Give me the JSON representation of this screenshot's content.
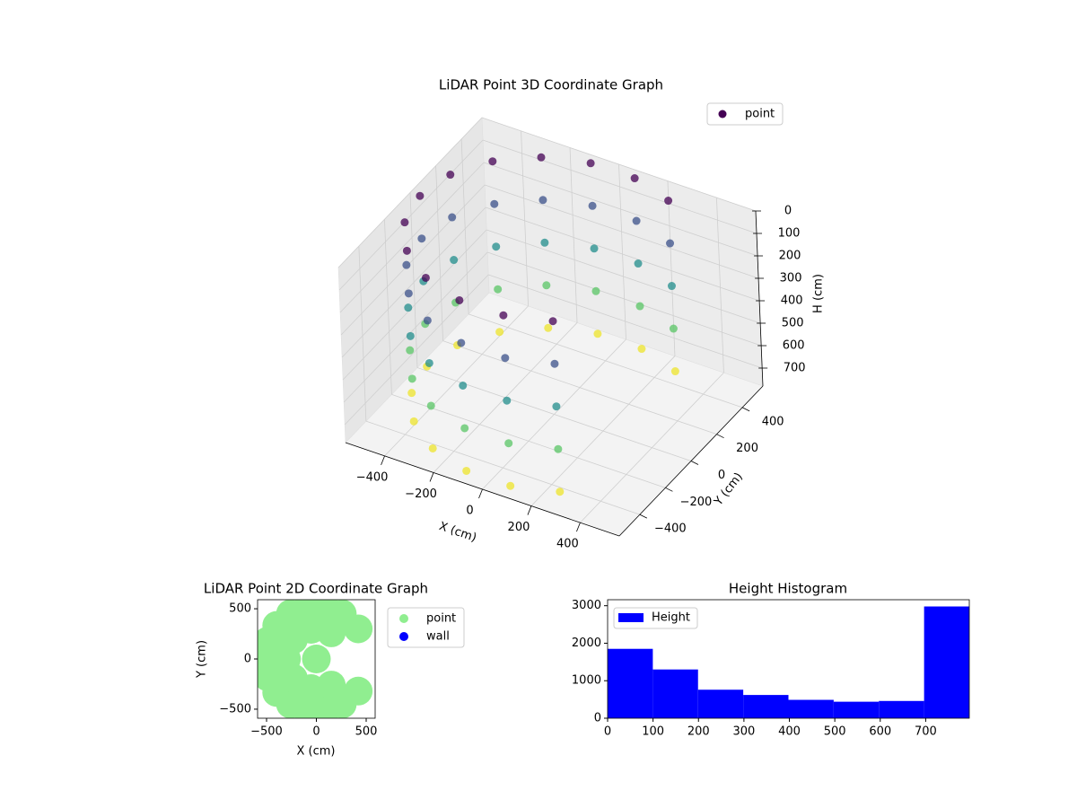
{
  "chart_data": [
    {
      "type": "scatter3d",
      "title": "LiDAR Point 3D Coordinate Graph",
      "xlabel": "X (cm)",
      "ylabel": "Y (cm)",
      "zlabel": "H (cm)",
      "xlim": [
        -560,
        560
      ],
      "ylim": [
        -560,
        560
      ],
      "zlim": [
        0,
        780
      ],
      "z_inverted": true,
      "xticks": [
        {
          "value": -400,
          "label": "−400"
        },
        {
          "value": -200,
          "label": "−200"
        },
        0,
        200,
        400
      ],
      "yticks": [
        {
          "value": -400,
          "label": "−400"
        },
        {
          "value": -200,
          "label": "−200"
        },
        0,
        200,
        400
      ],
      "zticks": [
        0,
        100,
        200,
        300,
        400,
        500,
        600,
        700
      ],
      "grid": true,
      "colormap": "viridis",
      "legend": "upper right",
      "series": [
        {
          "name": "point",
          "color": "#440154",
          "x": [
            260,
            260,
            260,
            260,
            260,
            90,
            90,
            90,
            90,
            90,
            -90,
            -90,
            -90,
            -90,
            -90,
            -260,
            -260,
            -260,
            -260,
            -260,
            -398,
            -398,
            -398,
            -398,
            -398,
            -489,
            -489,
            -489,
            -489,
            -489,
            -520,
            -520,
            -520,
            -520,
            -520,
            -489,
            -489,
            -489,
            -489,
            -489,
            -398,
            -398,
            -398,
            -398,
            -398,
            -260,
            -260,
            -260,
            -260,
            -260,
            -90,
            -90,
            -90,
            -90,
            -90,
            90,
            90,
            90,
            90,
            90,
            260,
            260,
            260,
            260,
            260
          ],
          "y": [
            450,
            450,
            450,
            450,
            450,
            512,
            512,
            512,
            512,
            512,
            512,
            512,
            512,
            512,
            512,
            450,
            450,
            450,
            450,
            450,
            334,
            334,
            334,
            334,
            334,
            178,
            178,
            178,
            178,
            178,
            0,
            0,
            0,
            0,
            0,
            -178,
            -178,
            -178,
            -178,
            -178,
            -334,
            -334,
            -334,
            -334,
            -334,
            -450,
            -450,
            -450,
            -450,
            -450,
            -512,
            -512,
            -512,
            -512,
            -512,
            -512,
            -512,
            -512,
            -512,
            -512,
            -450,
            -450,
            -450,
            -450,
            -450
          ],
          "z": [
            0,
            190,
            380,
            570,
            760,
            0,
            190,
            380,
            570,
            760,
            0,
            190,
            380,
            570,
            760,
            0,
            190,
            380,
            570,
            760,
            0,
            190,
            380,
            570,
            760,
            0,
            190,
            380,
            570,
            760,
            0,
            190,
            380,
            570,
            760,
            0,
            190,
            380,
            570,
            760,
            0,
            190,
            380,
            570,
            760,
            0,
            190,
            380,
            570,
            760,
            0,
            190,
            380,
            570,
            760,
            0,
            190,
            380,
            570,
            760,
            0,
            190,
            380,
            570,
            760
          ]
        }
      ]
    },
    {
      "type": "scatter",
      "title": "LiDAR Point 2D Coordinate Graph",
      "xlabel": "X (cm)",
      "ylabel": "Y (cm)",
      "xlim": [
        -590,
        590
      ],
      "ylim": [
        -590,
        590
      ],
      "xticks": [
        {
          "value": -500,
          "label": "−500"
        },
        0,
        500
      ],
      "yticks": [
        {
          "value": -500,
          "label": "−500"
        },
        0,
        500
      ],
      "legend": "outside right",
      "series": [
        {
          "name": "point",
          "color": "#90ee90",
          "x": [
            260,
            90,
            -90,
            -260,
            -398,
            -489,
            -520,
            -489,
            -398,
            -260,
            -90,
            90,
            260,
            150,
            -52,
            -230,
            -300,
            -230,
            -52,
            150,
            0,
            420,
            420
          ],
          "y": [
            450,
            512,
            512,
            450,
            334,
            178,
            0,
            -178,
            -334,
            -450,
            -512,
            -512,
            -450,
            260,
            295,
            193,
            0,
            -193,
            -295,
            -260,
            0,
            300,
            -320
          ]
        },
        {
          "name": "wall",
          "color": "#0000ff",
          "x": [],
          "y": []
        }
      ]
    },
    {
      "type": "histogram",
      "title": "Height Histogram",
      "bins": [
        0,
        99.5,
        199,
        298.5,
        398,
        497.5,
        597,
        696.5,
        796
      ],
      "series": [
        {
          "name": "Height",
          "color": "#0000ff",
          "values": [
            1850,
            1300,
            760,
            620,
            490,
            440,
            460,
            2980
          ]
        }
      ],
      "xlim": [
        0,
        796
      ],
      "ylim": [
        0,
        3160
      ],
      "xticks": [
        0,
        100,
        200,
        300,
        400,
        500,
        600,
        700
      ],
      "yticks": [
        0,
        1000,
        2000,
        3000
      ],
      "legend": "upper left"
    }
  ]
}
